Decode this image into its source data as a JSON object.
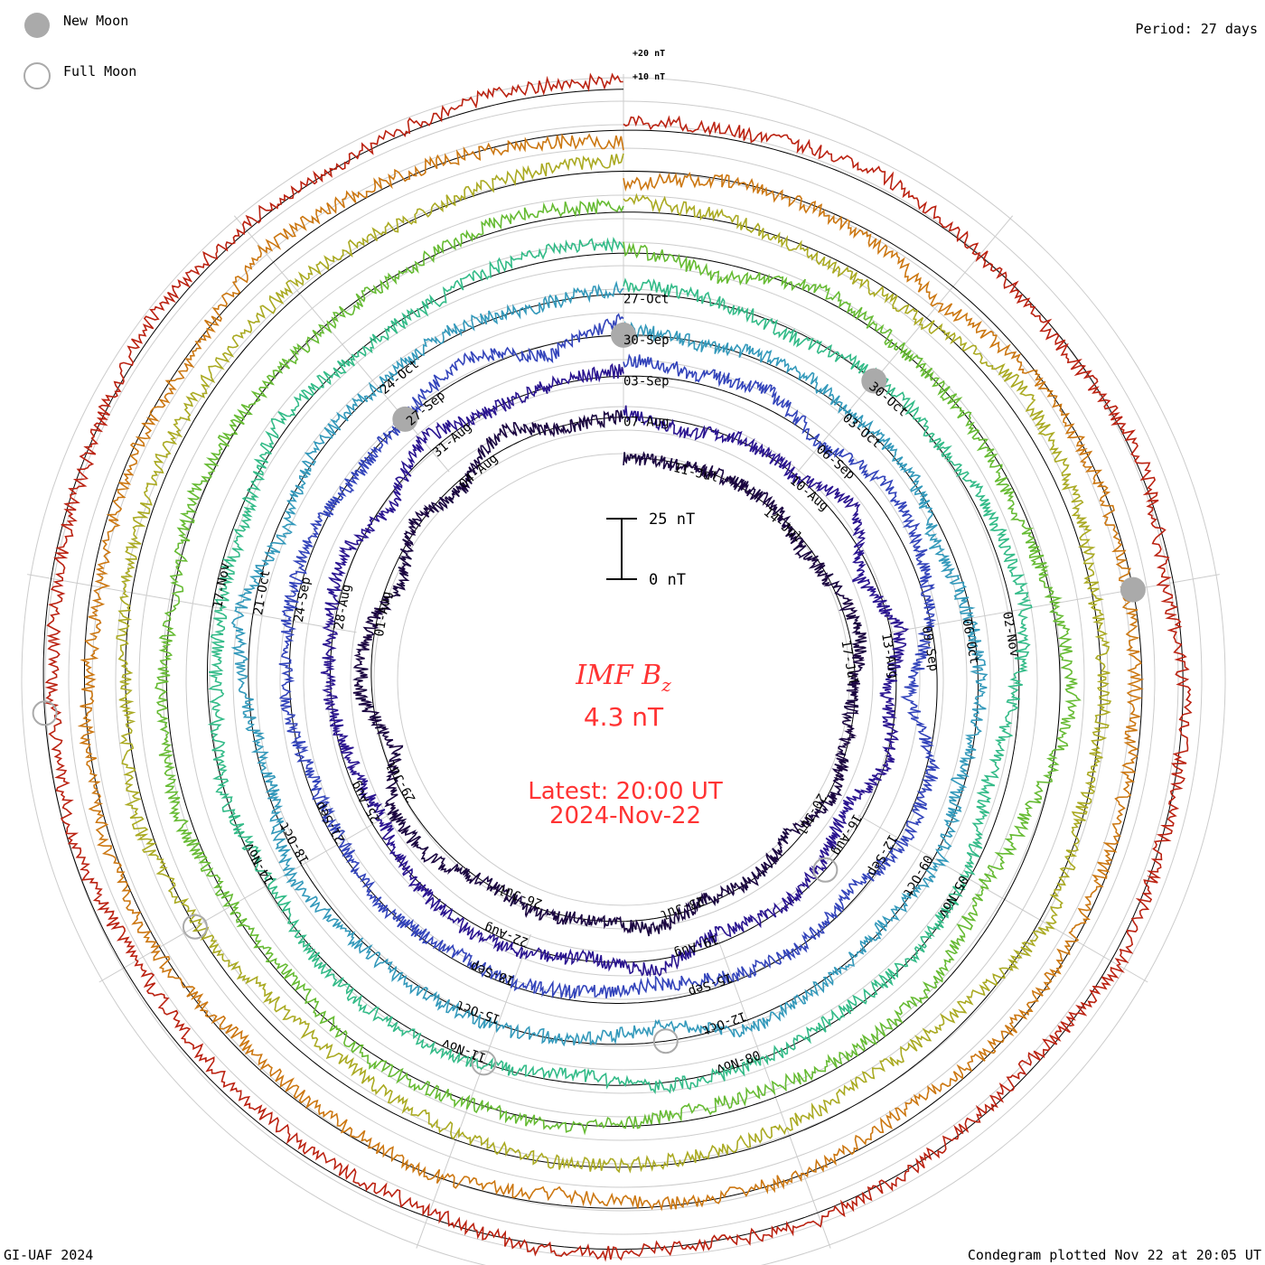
{
  "legend": {
    "new_moon_label": "New Moon",
    "full_moon_label": "Full Moon",
    "new_moon_color": "#aaaaaa",
    "full_moon_color": "#aaaaaa"
  },
  "period_label": "Period: 27 days",
  "reference_labels": [
    "+20 nT",
    "+10 nT"
  ],
  "footer": {
    "left": "GI-UAF 2024",
    "right": "Condegram plotted Nov 22 at 20:05 UT"
  },
  "center": {
    "title_main": "IMF B",
    "title_sub": "z",
    "value": "4.3 nT",
    "latest_line": "Latest: 20:00 UT",
    "date_line": "2024-Nov-22",
    "text_color": "#ff3333"
  },
  "scale_bar": {
    "top_label": "25 nT",
    "bottom_label": "0 nT",
    "nt_span": 25
  },
  "chart_data": {
    "type": "line",
    "title": "IMF B",
    "subtitle": "z",
    "xlabel": "",
    "ylabel": "",
    "period_days": 27,
    "start_date": "2024-Jul-10",
    "end_date": "2024-Nov-22",
    "series": [
      {
        "color": "#1a0540",
        "values": [
          0.0,
          -1.0,
          0.8,
          1.2,
          -3.0,
          0.5,
          4.4,
          -1.4,
          -0.9,
          2.0,
          -4.4,
          0.0,
          -1.9,
          4.3,
          -0.8,
          2.5,
          -1.0,
          6.4,
          7.4,
          -5.6,
          4.9,
          3.3,
          -5.7,
          1.9,
          -3.8,
          7.4,
          -1.6
        ]
      },
      {
        "color": "#2a1490",
        "values": [
          2.2,
          -4.0,
          1.1,
          -0.3,
          8.3,
          -6.0,
          4.1,
          -4.3,
          2.0,
          -8.8,
          -2.9,
          -0.6,
          -4.4,
          4.4,
          -1.7,
          2.6,
          3.4,
          0.9,
          -5.0,
          -3.3,
          0.8,
          1.3,
          5.1,
          -3.9,
          6.0,
          -0.6,
          0.7
        ]
      },
      {
        "color": "#3344bb",
        "values": [
          6.6,
          3.6,
          6.7,
          -0.7,
          7.6,
          5.8,
          -1.3,
          -12.1,
          3.2,
          2.7,
          -3.6,
          0.3,
          -2.6,
          -7.1,
          -4.1,
          -1.6,
          -3.2,
          1.5,
          -2.9,
          -2.3,
          1.6,
          2.3,
          2.4,
          -1.0,
          0.2,
          7.9,
          -4.7
        ]
      },
      {
        "color": "#3399bb",
        "values": [
          2.5,
          -1.1,
          3.4,
          0.3,
          1.7,
          -5.1,
          -0.7,
          1.2,
          -2.8,
          3.0,
          -1.2,
          1.2,
          4.0,
          -7.0,
          -1.8,
          1.6,
          1.1,
          1.7,
          6.2,
          -3.1,
          0.7,
          5.8,
          -4.2,
          2.1,
          0.8,
          2.8,
          -0.5
        ]
      },
      {
        "color": "#33bb88",
        "values": [
          4.1,
          1.1,
          -3.0,
          2.4,
          0.9,
          4.4,
          5.5,
          -2.8,
          -7.9,
          -1.5,
          -0.2,
          -2.0,
          0.9,
          1.6,
          -3.9,
          0.8,
          2.6,
          2.2,
          -2.8,
          0.6,
          -3.5,
          -3.7,
          -3.3,
          4.3,
          -1.1,
          -0.5,
          4.5
        ]
      },
      {
        "color": "#66bb33",
        "values": [
          2.1,
          -5.8,
          3.7,
          0.3,
          -0.3,
          -3.7,
          0.9,
          5.6,
          -4.5,
          -11.1,
          -4.0,
          -2.4,
          -4.3,
          -3.8,
          1.2,
          0.8,
          2.6,
          -2.2,
          -1.0,
          4.8,
          2.6,
          -1.2,
          3.0,
          0.9,
          -0.7,
          -0.1,
          4.2
        ]
      },
      {
        "color": "#aaaa22",
        "values": [
          4.6,
          1.5,
          -3.9,
          -2.2,
          8.2,
          4.8,
          0.6,
          1.2,
          -1.6,
          3.6,
          -4.8,
          -7.6,
          -4.5,
          -1.5,
          -0.4,
          -2.8,
          -7.4,
          -8.1,
          -1.5,
          4.5,
          -0.3,
          2.4,
          4.6,
          4.4,
          4.4,
          0.8,
          2.6
        ]
      },
      {
        "color": "#cc7711",
        "values": [
          -5.3,
          -0.1,
          -1.6,
          -9.2,
          -1.1,
          -0.7,
          -2.3,
          -3.1,
          -2.8,
          -1.5,
          -0.6,
          -4.8,
          -0.3,
          -0.9,
          -4.6,
          -0.4,
          -2.6,
          -4.0,
          2.5,
          2.6,
          -0.5,
          -4.3,
          -0.9,
          -2.0,
          6.2,
          2.6,
          -1.1
        ]
      },
      {
        "color": "#bb2211",
        "values": [
          3.3,
          3.6,
          6.4,
          0.6,
          -2.4,
          2.7,
          -4.0,
          1.2,
          0.3,
          3.5,
          -3.2,
          -0.1,
          2.9,
          0.0,
          2.3,
          -2.7,
          -3.6,
          -4.4,
          -6.2,
          -2.0,
          -3.9,
          -3.0,
          -0.8,
          3.8,
          2.1,
          0.6,
          4.2
        ]
      }
    ],
    "date_labels": [
      {
        "day": 1,
        "label": "11-Jul"
      },
      {
        "day": 3,
        "label": "14-Jul"
      },
      {
        "day": 6,
        "label": "17-Jul"
      },
      {
        "day": 9,
        "label": "20-Jul"
      },
      {
        "day": 12,
        "label": "23-Jul"
      },
      {
        "day": 15,
        "label": "26-Jul"
      },
      {
        "day": 18,
        "label": "29-Jul"
      },
      {
        "day": 21,
        "label": "01-Aug"
      },
      {
        "day": 24,
        "label": "04-Aug"
      },
      {
        "day": 0,
        "label": "07-Aug"
      },
      {
        "day": 3,
        "label": "10-Aug"
      },
      {
        "day": 6,
        "label": "13-Aug"
      },
      {
        "day": 9,
        "label": "16-Aug"
      },
      {
        "day": 12,
        "label": "19-Aug"
      },
      {
        "day": 15,
        "label": "22-Aug"
      },
      {
        "day": 18,
        "label": "25-Aug"
      },
      {
        "day": 21,
        "label": "28-Aug"
      },
      {
        "day": 24,
        "label": "31-Aug"
      },
      {
        "day": 0,
        "label": "03-Sep"
      },
      {
        "day": 3,
        "label": "06-Sep"
      },
      {
        "day": 6,
        "label": "09-Sep"
      },
      {
        "day": 9,
        "label": "12-Sep"
      },
      {
        "day": 12,
        "label": "15-Sep"
      },
      {
        "day": 15,
        "label": "18-Sep"
      },
      {
        "day": 18,
        "label": "21-Sep"
      },
      {
        "day": 21,
        "label": "24-Sep"
      },
      {
        "day": 24,
        "label": "27-Sep"
      },
      {
        "day": 0,
        "label": "30-Sep"
      },
      {
        "day": 3,
        "label": "03-Oct"
      },
      {
        "day": 6,
        "label": "06-Oct"
      },
      {
        "day": 9,
        "label": "09-Oct"
      },
      {
        "day": 12,
        "label": "12-Oct"
      },
      {
        "day": 15,
        "label": "15-Oct"
      },
      {
        "day": 18,
        "label": "18-Oct"
      },
      {
        "day": 21,
        "label": "21-Oct"
      },
      {
        "day": 24,
        "label": "24-Oct"
      },
      {
        "day": 0,
        "label": "27-Oct"
      },
      {
        "day": 3,
        "label": "30-Oct"
      },
      {
        "day": 6,
        "label": "02-Nov"
      },
      {
        "day": 9,
        "label": "05-Nov"
      },
      {
        "day": 12,
        "label": "08-Nov"
      },
      {
        "day": 15,
        "label": "11-Nov"
      },
      {
        "day": 18,
        "label": "14-Nov"
      },
      {
        "day": 21,
        "label": "17-Nov"
      }
    ],
    "new_moons": [
      {
        "ring": 3,
        "day": 0
      },
      {
        "ring": 4,
        "day": 3
      },
      {
        "ring": 7,
        "day": 6
      },
      {
        "ring": 2,
        "day": 24
      }
    ],
    "full_moons": [
      {
        "ring": 1,
        "day": 10
      },
      {
        "ring": 3,
        "day": 13
      },
      {
        "ring": 4,
        "day": 15
      },
      {
        "ring": 6,
        "day": 18
      },
      {
        "ring": 8,
        "day": 20
      }
    ],
    "grid": true
  }
}
